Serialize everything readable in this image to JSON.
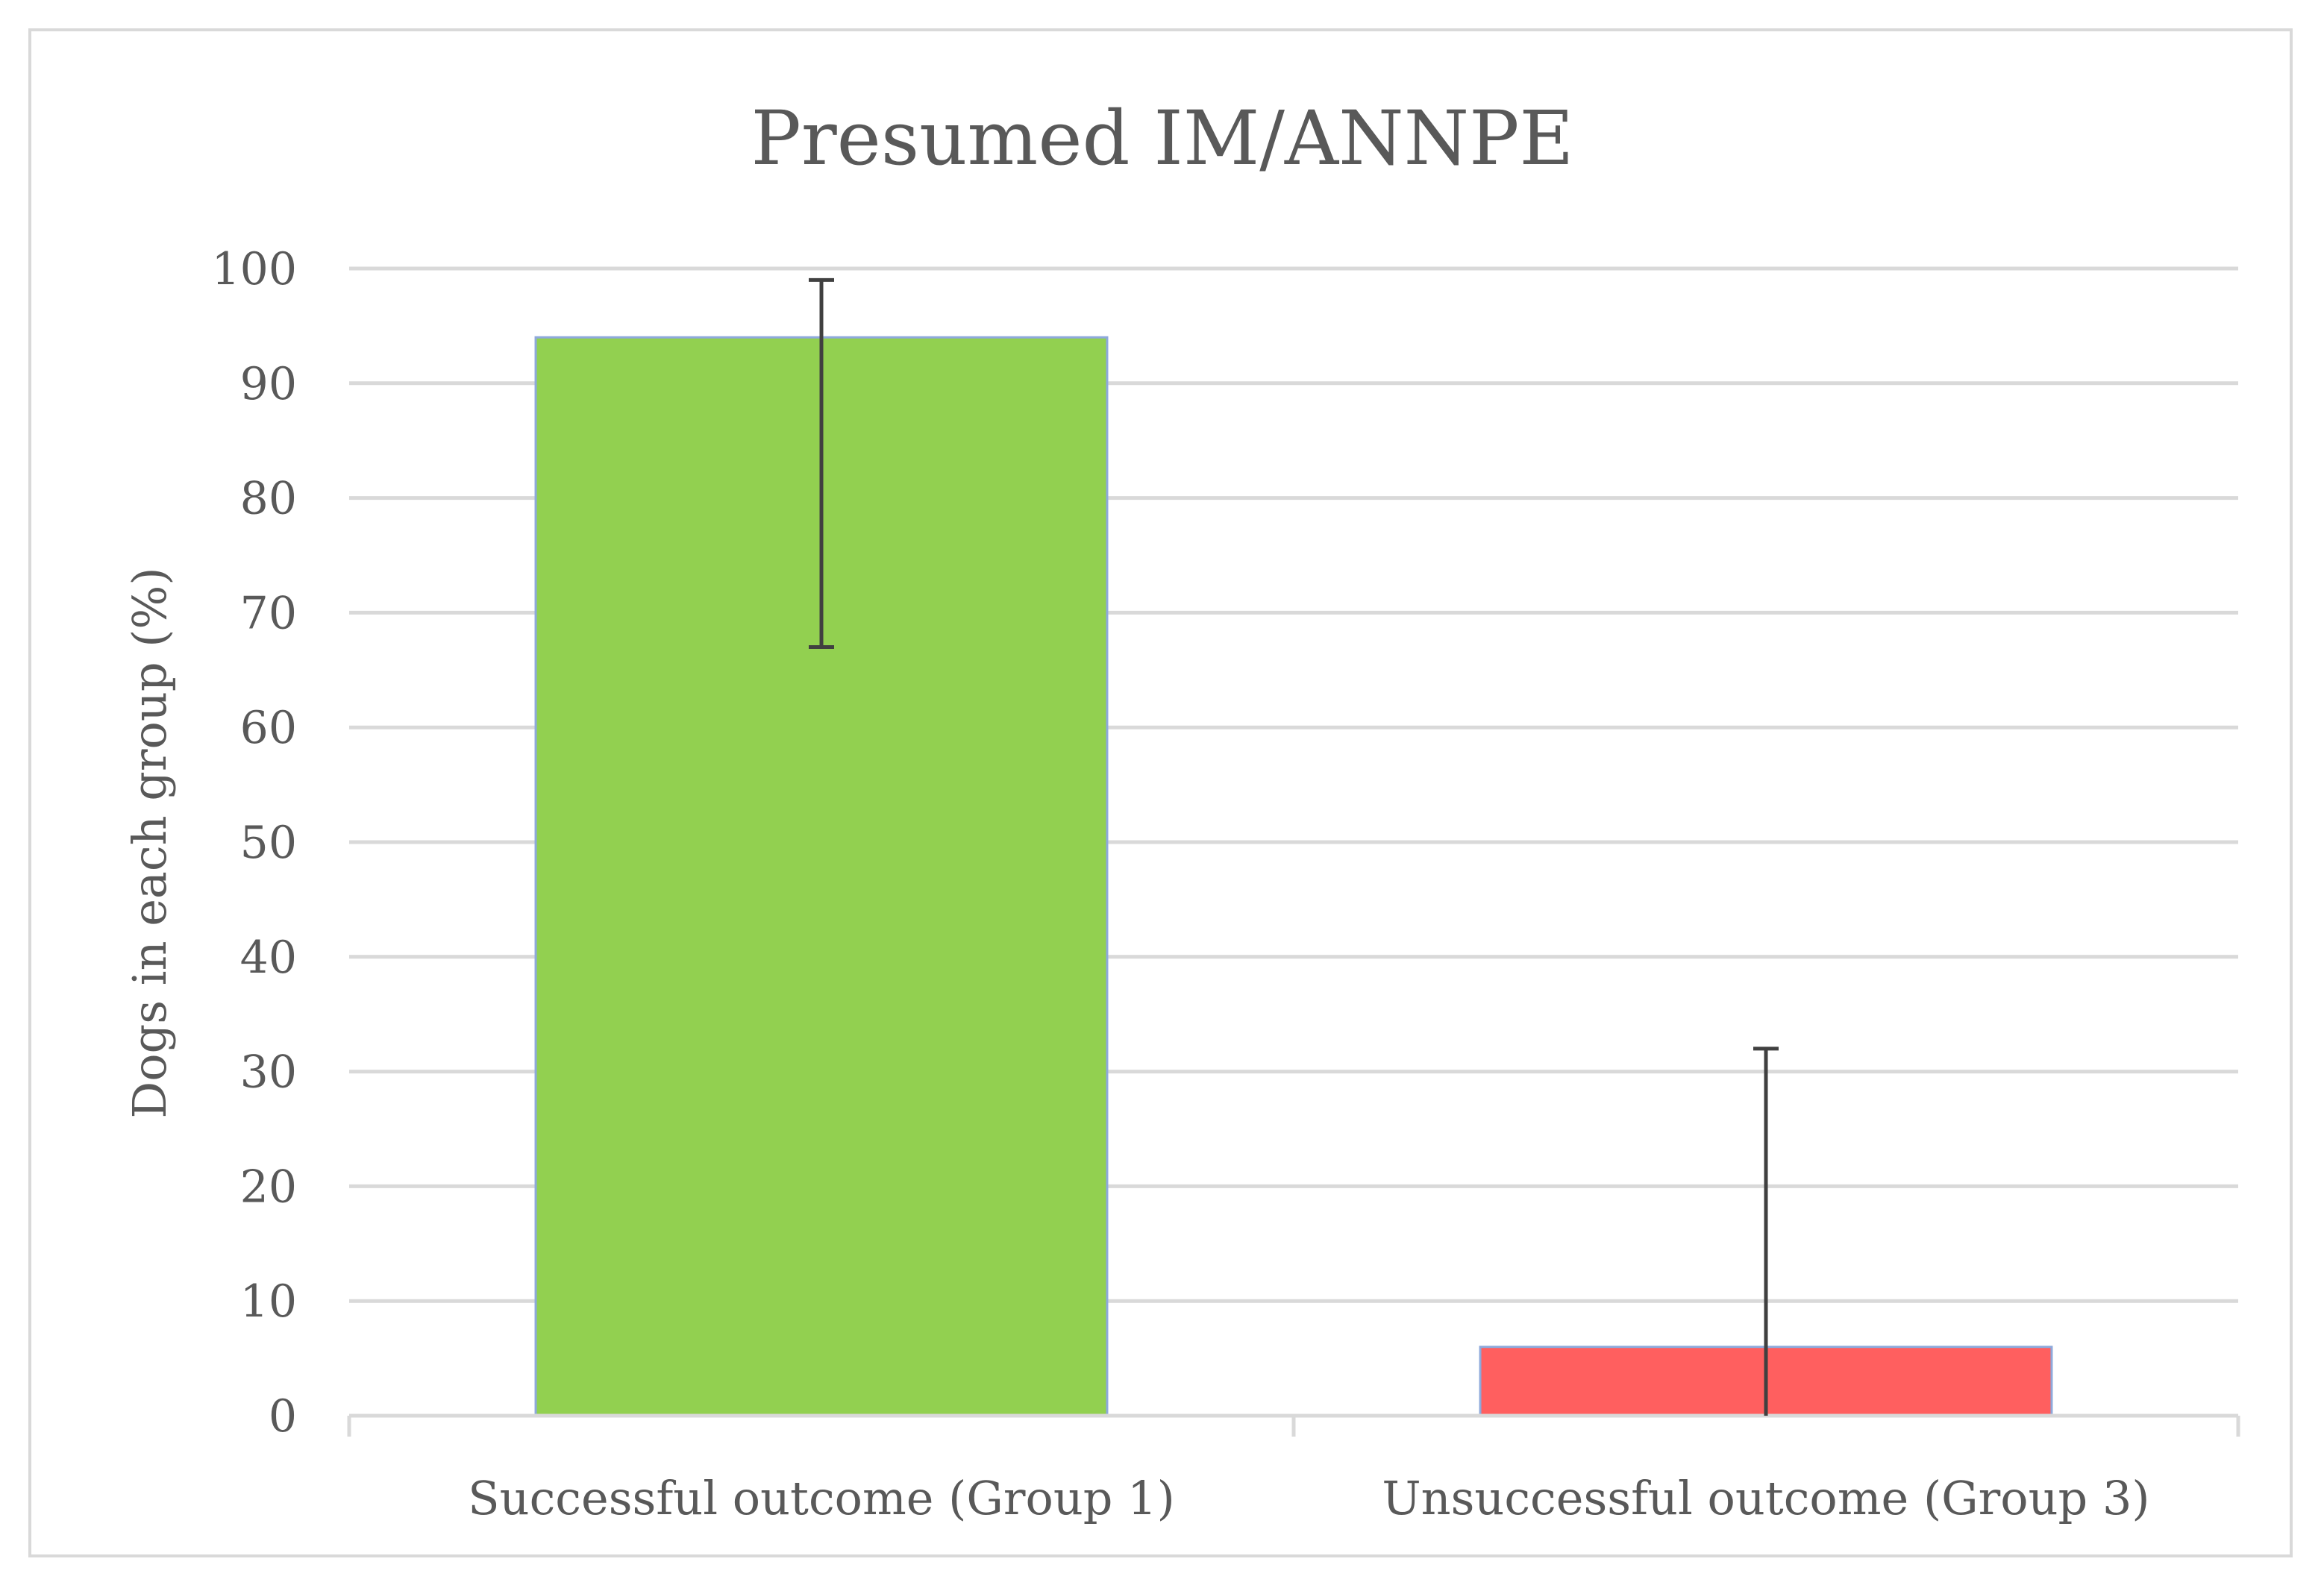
{
  "chart_data": {
    "type": "bar",
    "title": "Presumed IM/ANNPE",
    "xlabel": "",
    "ylabel": "Dogs in each group (%)",
    "ylim": [
      0,
      100
    ],
    "yticks": [
      "0",
      "10",
      "20",
      "30",
      "40",
      "50",
      "60",
      "70",
      "80",
      "90",
      "100"
    ],
    "grid": true,
    "categories": [
      "Successful outcome (Group 1)",
      "Unsuccessful outcome (Group 3)"
    ],
    "values": [
      94,
      6
    ],
    "error_low": [
      67,
      0
    ],
    "error_high": [
      99,
      32
    ],
    "colors": [
      "#92d050",
      "#ff5f5f"
    ],
    "bar_edge_color": "#8ea9db",
    "grid_color": "#d9d9d9",
    "text_color": "#595959",
    "error_bar_color": "#404040"
  }
}
